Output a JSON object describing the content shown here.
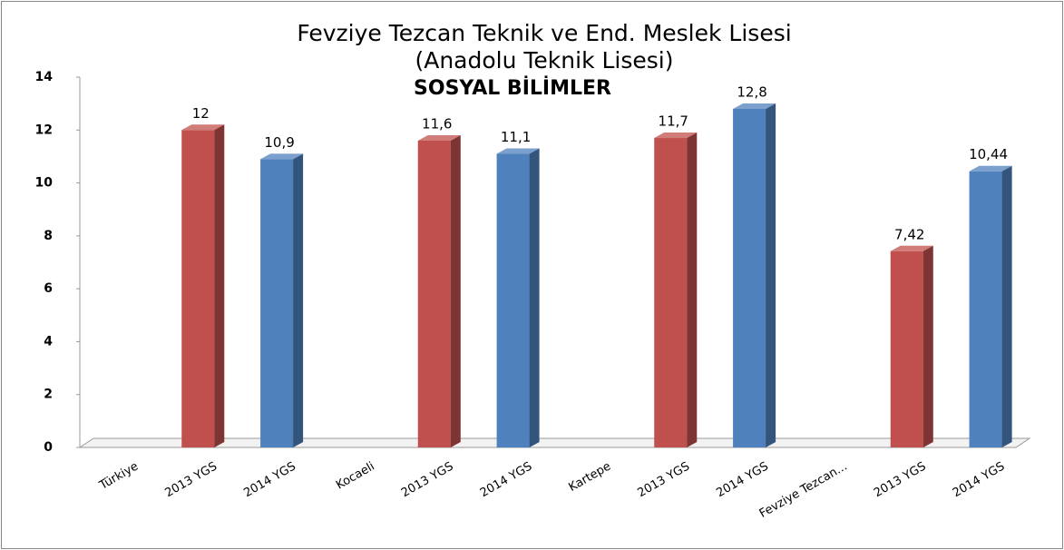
{
  "chart_data": {
    "type": "bar",
    "title": "Fevziye Tezcan Teknik ve End. Meslek Lisesi",
    "subtitle": "(Anadolu Teknik Lisesi)",
    "annotation": "SOSYAL BİLİMLER",
    "categories": [
      "Türkiye",
      "2013 YGS",
      "2014 YGS",
      "Kocaeli",
      "2013 YGS",
      "2014 YGS",
      "Kartepe",
      "2013 YGS",
      "2014 YGS",
      "Fevziye Tezcan...",
      "2013 YGS",
      "2014 YGS"
    ],
    "values": [
      null,
      12,
      10.9,
      null,
      11.6,
      11.1,
      null,
      11.7,
      12.8,
      null,
      7.42,
      10.44
    ],
    "value_labels": [
      null,
      "12",
      "10,9",
      null,
      "11,6",
      "11,1",
      null,
      "11,7",
      "12,8",
      null,
      "7,42",
      "10,44"
    ],
    "colors": [
      null,
      "#c0504d",
      "#4f81bd",
      null,
      "#c0504d",
      "#4f81bd",
      null,
      "#c0504d",
      "#4f81bd",
      null,
      "#c0504d",
      "#4f81bd"
    ],
    "ylim": [
      0,
      14
    ],
    "yticks": [
      0,
      2,
      4,
      6,
      8,
      10,
      12,
      14
    ],
    "grid": false
  }
}
